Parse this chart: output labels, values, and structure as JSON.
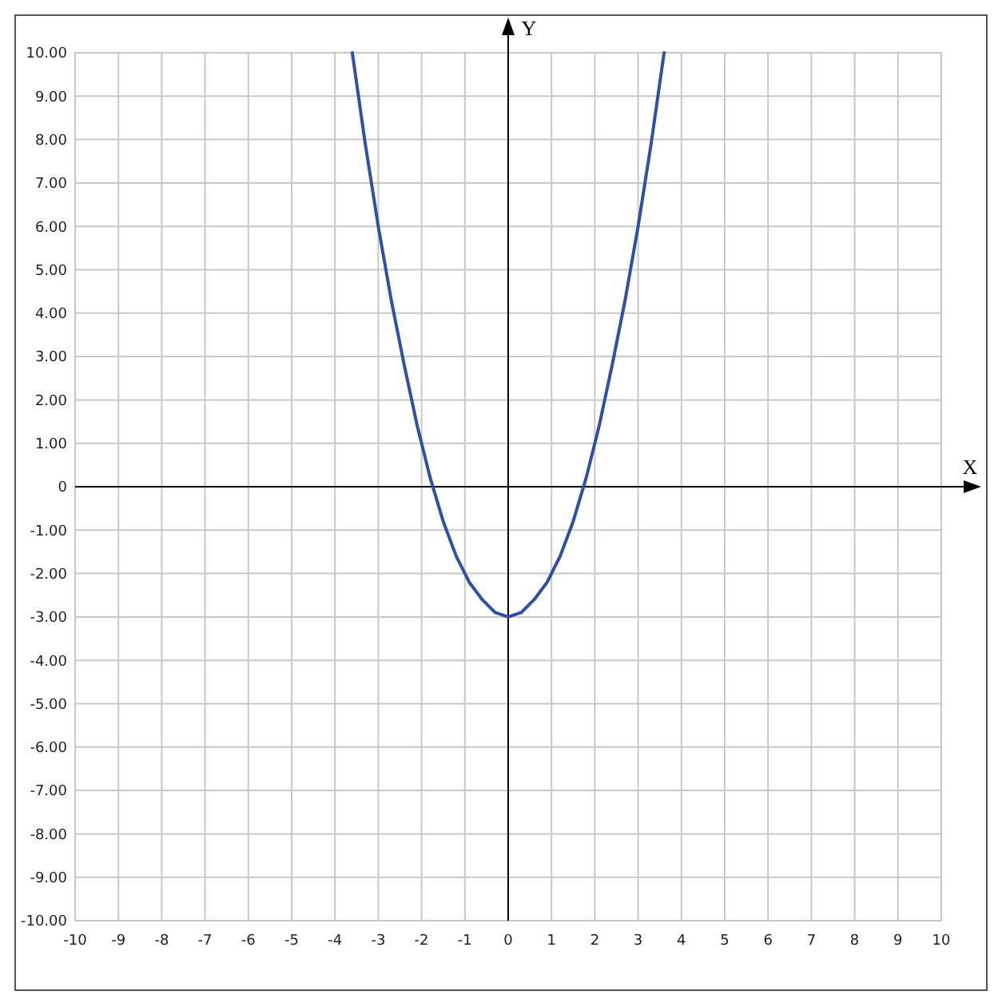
{
  "chart_data": {
    "type": "line",
    "xlabel": "X",
    "ylabel": "Y",
    "x": [
      -3.6,
      -3.3,
      -3.0,
      -2.7,
      -2.4,
      -2.1,
      -1.8,
      -1.5,
      -1.2,
      -0.9,
      -0.6,
      -0.3,
      0,
      0.3,
      0.6,
      0.9,
      1.2,
      1.5,
      1.8,
      2.1,
      2.4,
      2.7,
      3.0,
      3.3,
      3.6
    ],
    "series": [
      {
        "color": "#2f4fa8",
        "values": [
          10.0,
          7.9,
          6.0,
          4.3,
          2.8,
          1.4,
          0.2,
          -0.8,
          -1.6,
          -2.2,
          -2.6,
          -2.9,
          -3.0,
          -2.9,
          -2.6,
          -2.2,
          -1.6,
          -0.8,
          0.2,
          1.4,
          2.8,
          4.3,
          6.0,
          7.9,
          10.0
        ]
      }
    ],
    "xlim": [
      -10,
      10
    ],
    "ylim": [
      -10,
      10
    ],
    "xticks": [
      -10,
      -9,
      -8,
      -7,
      -6,
      -5,
      -4,
      -3,
      -2,
      -1,
      0,
      1,
      2,
      3,
      4,
      5,
      6,
      7,
      8,
      9,
      10
    ],
    "yticks": [
      {
        "value": 10,
        "label": "10.00"
      },
      {
        "value": 9,
        "label": "9.00"
      },
      {
        "value": 8,
        "label": "8.00"
      },
      {
        "value": 7,
        "label": "7.00"
      },
      {
        "value": 6,
        "label": "6.00"
      },
      {
        "value": 5,
        "label": "5.00"
      },
      {
        "value": 4,
        "label": "4.00"
      },
      {
        "value": 3,
        "label": "3.00"
      },
      {
        "value": 2,
        "label": "2.00"
      },
      {
        "value": 1,
        "label": "1.00"
      },
      {
        "value": 0,
        "label": "0"
      },
      {
        "value": -1,
        "label": "-1.00"
      },
      {
        "value": -2,
        "label": "-2.00"
      },
      {
        "value": -3,
        "label": "-3.00"
      },
      {
        "value": -4,
        "label": "-4.00"
      },
      {
        "value": -5,
        "label": "-5.00"
      },
      {
        "value": -6,
        "label": "-6.00"
      },
      {
        "value": -7,
        "label": "-7.00"
      },
      {
        "value": -8,
        "label": "-8.00"
      },
      {
        "value": -9,
        "label": "-9.00"
      },
      {
        "value": -10,
        "label": "-10.00"
      }
    ],
    "grid": true,
    "marker": "none",
    "line_style": "solid"
  }
}
